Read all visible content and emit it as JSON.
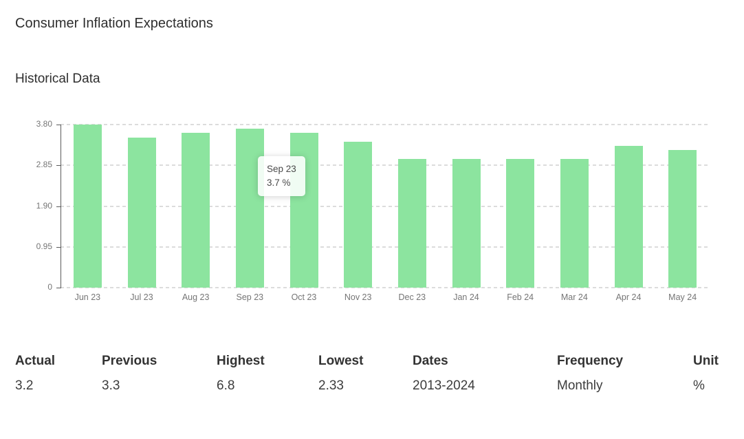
{
  "page": {
    "title": "Consumer Inflation Expectations",
    "section_title": "Historical Data"
  },
  "chart_data": {
    "type": "bar",
    "title": "Historical Data",
    "categories": [
      "Jun 23",
      "Jul 23",
      "Aug 23",
      "Sep 23",
      "Oct 23",
      "Nov 23",
      "Dec 23",
      "Jan 24",
      "Feb 24",
      "Mar 24",
      "Apr 24",
      "May 24"
    ],
    "values": [
      3.8,
      3.5,
      3.6,
      3.7,
      3.6,
      3.4,
      3.0,
      3.0,
      3.0,
      3.0,
      3.3,
      3.2
    ],
    "unit": "%",
    "xlabel": "",
    "ylabel": "",
    "ylim": [
      0,
      3.8
    ],
    "y_ticks": [
      3.8,
      2.85,
      1.9,
      0.95,
      0
    ],
    "y_tick_labels": [
      "3.80",
      "2.85",
      "1.90",
      "0.95",
      "0"
    ],
    "grid": "horizontal-dashed",
    "legend": "none",
    "bar_color": "#8ce49f",
    "tooltip": {
      "label": "Sep 23",
      "value": "3.7 %",
      "index": 3
    }
  },
  "stats": {
    "columns": [
      {
        "label": "Actual",
        "value": "3.2"
      },
      {
        "label": "Previous",
        "value": "3.3"
      },
      {
        "label": "Highest",
        "value": "6.8"
      },
      {
        "label": "Lowest",
        "value": "2.33"
      },
      {
        "label": "Dates",
        "value": "2013-2024"
      },
      {
        "label": "Frequency",
        "value": "Monthly"
      },
      {
        "label": "Unit",
        "value": "%"
      }
    ]
  }
}
